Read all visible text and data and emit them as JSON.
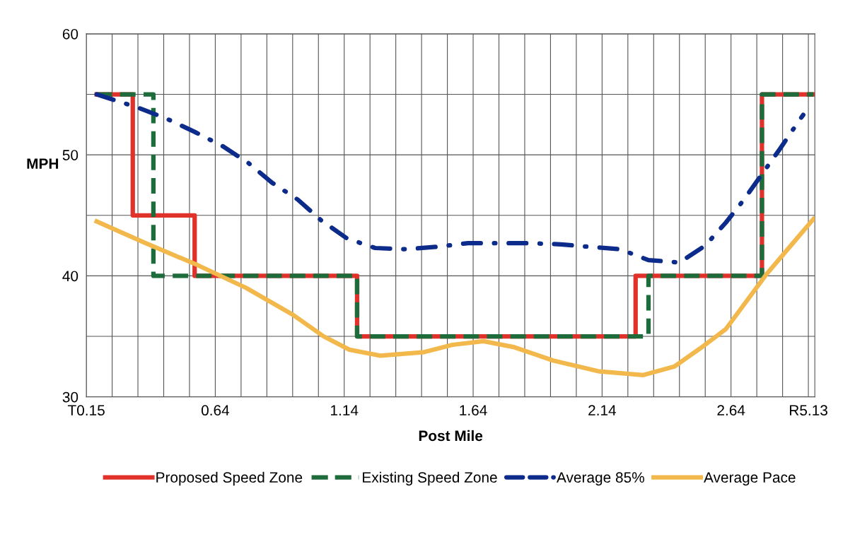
{
  "chart_data": {
    "type": "line",
    "xlabel": "Post Mile",
    "ylabel": "MPH",
    "xlim": [
      0.14,
      2.965
    ],
    "ylim": [
      30,
      60
    ],
    "xticks": [
      {
        "value": 0.14,
        "label": "T0.15"
      },
      {
        "value": 0.24,
        "label": null
      },
      {
        "value": 0.34,
        "label": null
      },
      {
        "value": 0.44,
        "label": null
      },
      {
        "value": 0.54,
        "label": null
      },
      0.64,
      {
        "value": 0.74,
        "label": null
      },
      {
        "value": 0.84,
        "label": null
      },
      {
        "value": 0.94,
        "label": null
      },
      {
        "value": 1.04,
        "label": null
      },
      1.14,
      {
        "value": 1.24,
        "label": null
      },
      {
        "value": 1.34,
        "label": null
      },
      {
        "value": 1.44,
        "label": null
      },
      {
        "value": 1.54,
        "label": null
      },
      1.64,
      {
        "value": 1.74,
        "label": null
      },
      {
        "value": 1.84,
        "label": null
      },
      {
        "value": 1.94,
        "label": null
      },
      {
        "value": 2.04,
        "label": null
      },
      2.14,
      {
        "value": 2.24,
        "label": null
      },
      {
        "value": 2.34,
        "label": null
      },
      {
        "value": 2.44,
        "label": null
      },
      {
        "value": 2.54,
        "label": null
      },
      2.64,
      {
        "value": 2.74,
        "label": null
      },
      {
        "value": 2.84,
        "label": null
      },
      {
        "value": 2.94,
        "label": "R5.13"
      }
    ],
    "yticks": [
      30,
      {
        "value": 35,
        "label": null
      },
      40,
      {
        "value": 45,
        "label": null
      },
      50,
      {
        "value": 55,
        "label": null
      },
      60
    ],
    "grid": true,
    "legend": "bottom",
    "series": [
      {
        "name": "Proposed Speed Zone",
        "color": "#e0322a",
        "line_style": "solid",
        "x": [
          0.18,
          0.32,
          0.32,
          0.56,
          0.56,
          1.19,
          1.19,
          2.27,
          2.27,
          2.76,
          2.76,
          2.96
        ],
        "values": [
          55,
          55,
          45,
          45,
          40,
          40,
          35,
          35,
          40,
          40,
          55,
          55
        ]
      },
      {
        "name": "Existing Speed Zone",
        "color": "#1e6b3c",
        "line_style": "dashed",
        "x": [
          0.18,
          0.4,
          0.4,
          1.19,
          1.19,
          2.32,
          2.32,
          2.76,
          2.76,
          2.96
        ],
        "values": [
          55,
          55,
          40,
          40,
          35,
          35,
          40,
          40,
          55,
          55
        ]
      },
      {
        "name": "Average 85%",
        "color": "#0d2b8a",
        "line_style": "dashdot",
        "x": [
          0.18,
          0.34,
          0.45,
          0.56,
          0.67,
          0.77,
          0.86,
          0.96,
          1.05,
          1.15,
          1.26,
          1.38,
          1.5,
          1.62,
          1.74,
          1.86,
          1.98,
          2.09,
          2.21,
          2.32,
          2.44,
          2.54,
          2.62,
          2.69,
          2.76,
          2.83,
          2.9,
          2.92
        ],
        "values": [
          55.0,
          53.9,
          53.0,
          51.9,
          50.7,
          49.3,
          47.7,
          46.3,
          44.6,
          43.1,
          42.3,
          42.2,
          42.4,
          42.7,
          42.7,
          42.7,
          42.6,
          42.4,
          42.2,
          41.3,
          41.1,
          42.5,
          44.4,
          46.3,
          48.4,
          50.5,
          52.7,
          53.3
        ]
      },
      {
        "name": "Average Pace",
        "color": "#f2b84b",
        "line_style": "solid",
        "x": [
          0.18,
          0.37,
          0.57,
          0.76,
          0.94,
          1.06,
          1.16,
          1.28,
          1.45,
          1.56,
          1.68,
          1.8,
          1.95,
          2.13,
          2.3,
          2.42,
          2.52,
          2.62,
          2.78,
          2.88,
          2.96
        ],
        "values": [
          44.5,
          42.7,
          40.9,
          39.0,
          36.8,
          35.0,
          33.9,
          33.4,
          33.7,
          34.3,
          34.6,
          34.1,
          33.0,
          32.1,
          31.8,
          32.5,
          34.0,
          35.6,
          40.2,
          42.7,
          44.7
        ]
      }
    ]
  }
}
